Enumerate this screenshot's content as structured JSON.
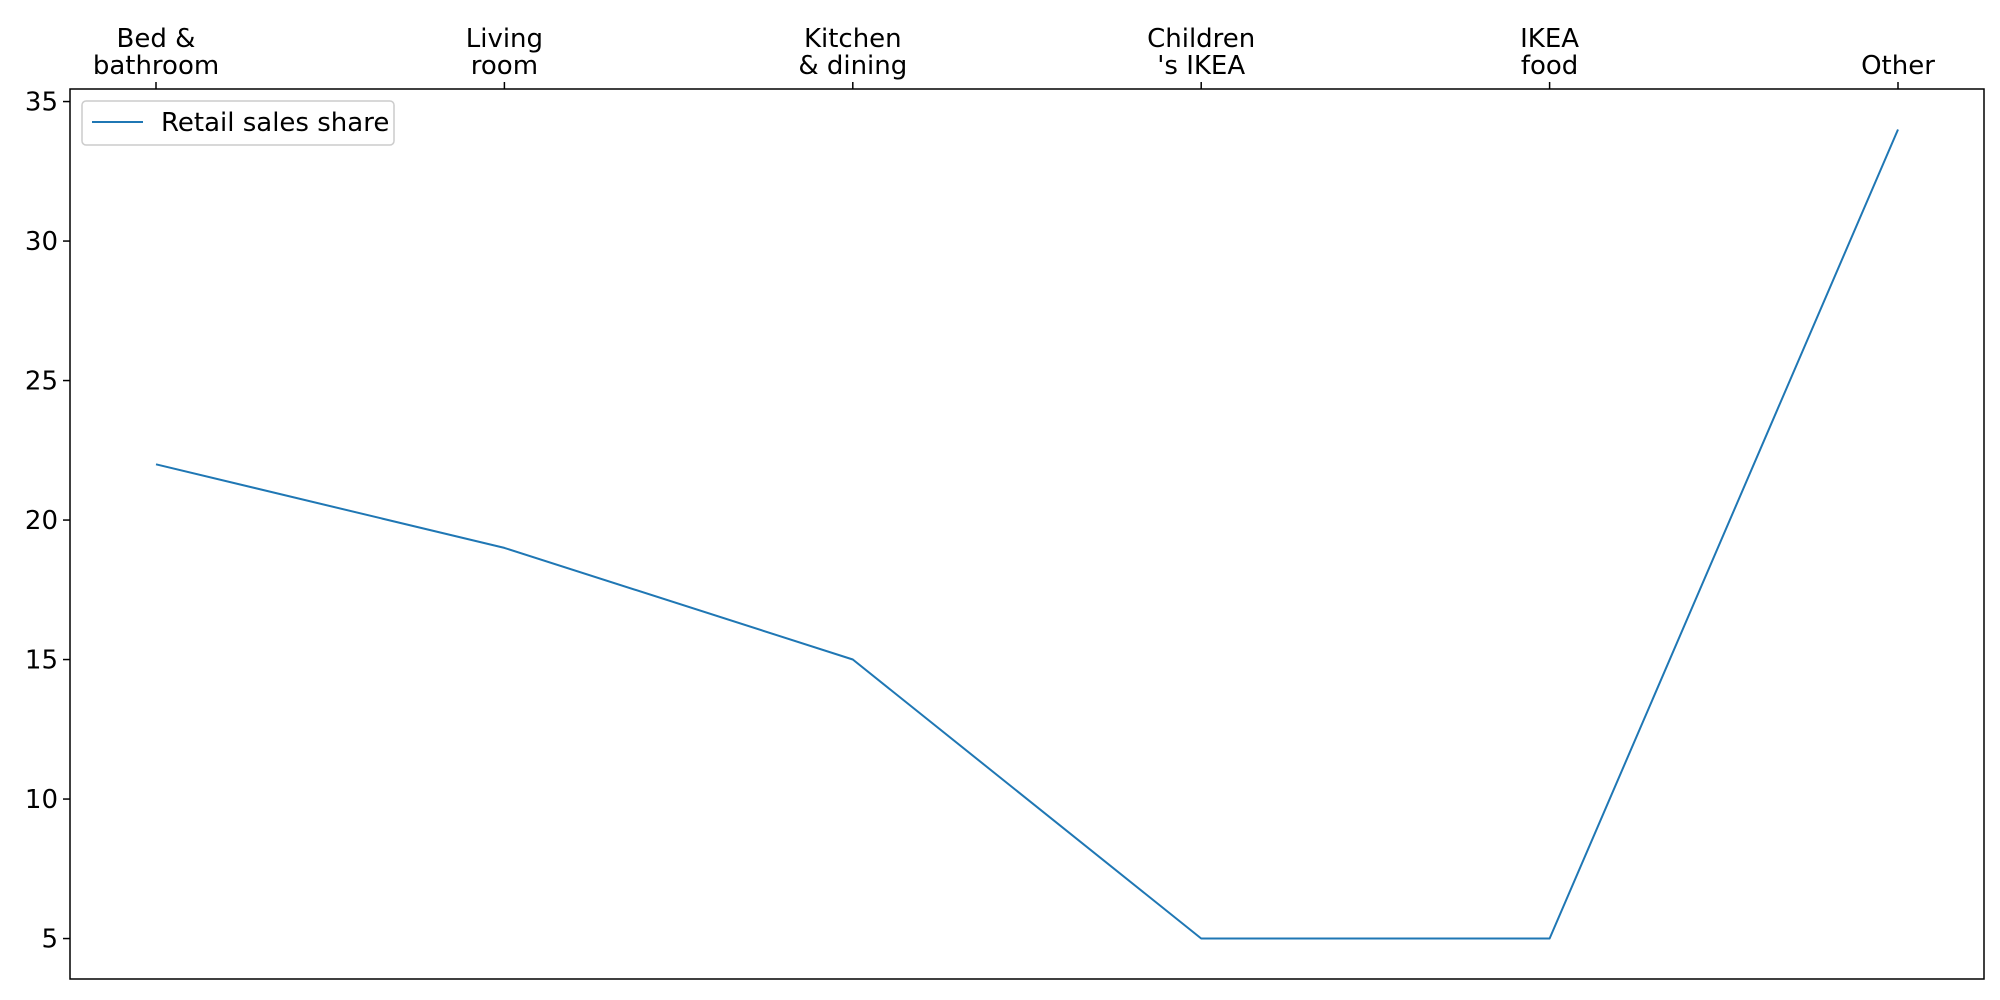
{
  "chart_data": {
    "type": "line",
    "categories": [
      [
        "Bed &",
        "bathroom"
      ],
      [
        "Living",
        "room"
      ],
      [
        "Kitchen",
        "& dining"
      ],
      [
        "Children",
        "'s IKEA"
      ],
      [
        "IKEA",
        "food"
      ],
      [
        "Other"
      ]
    ],
    "series": [
      {
        "name": "Retail sales share",
        "values": [
          22,
          19,
          15,
          5,
          5,
          34
        ],
        "color": "#1f77b4"
      }
    ],
    "yticks": [
      5,
      10,
      15,
      20,
      25,
      30,
      35
    ],
    "ylim": [
      3.55,
      35.45
    ],
    "x_axis_position": "top",
    "grid": false,
    "legend_position": "top-left"
  }
}
